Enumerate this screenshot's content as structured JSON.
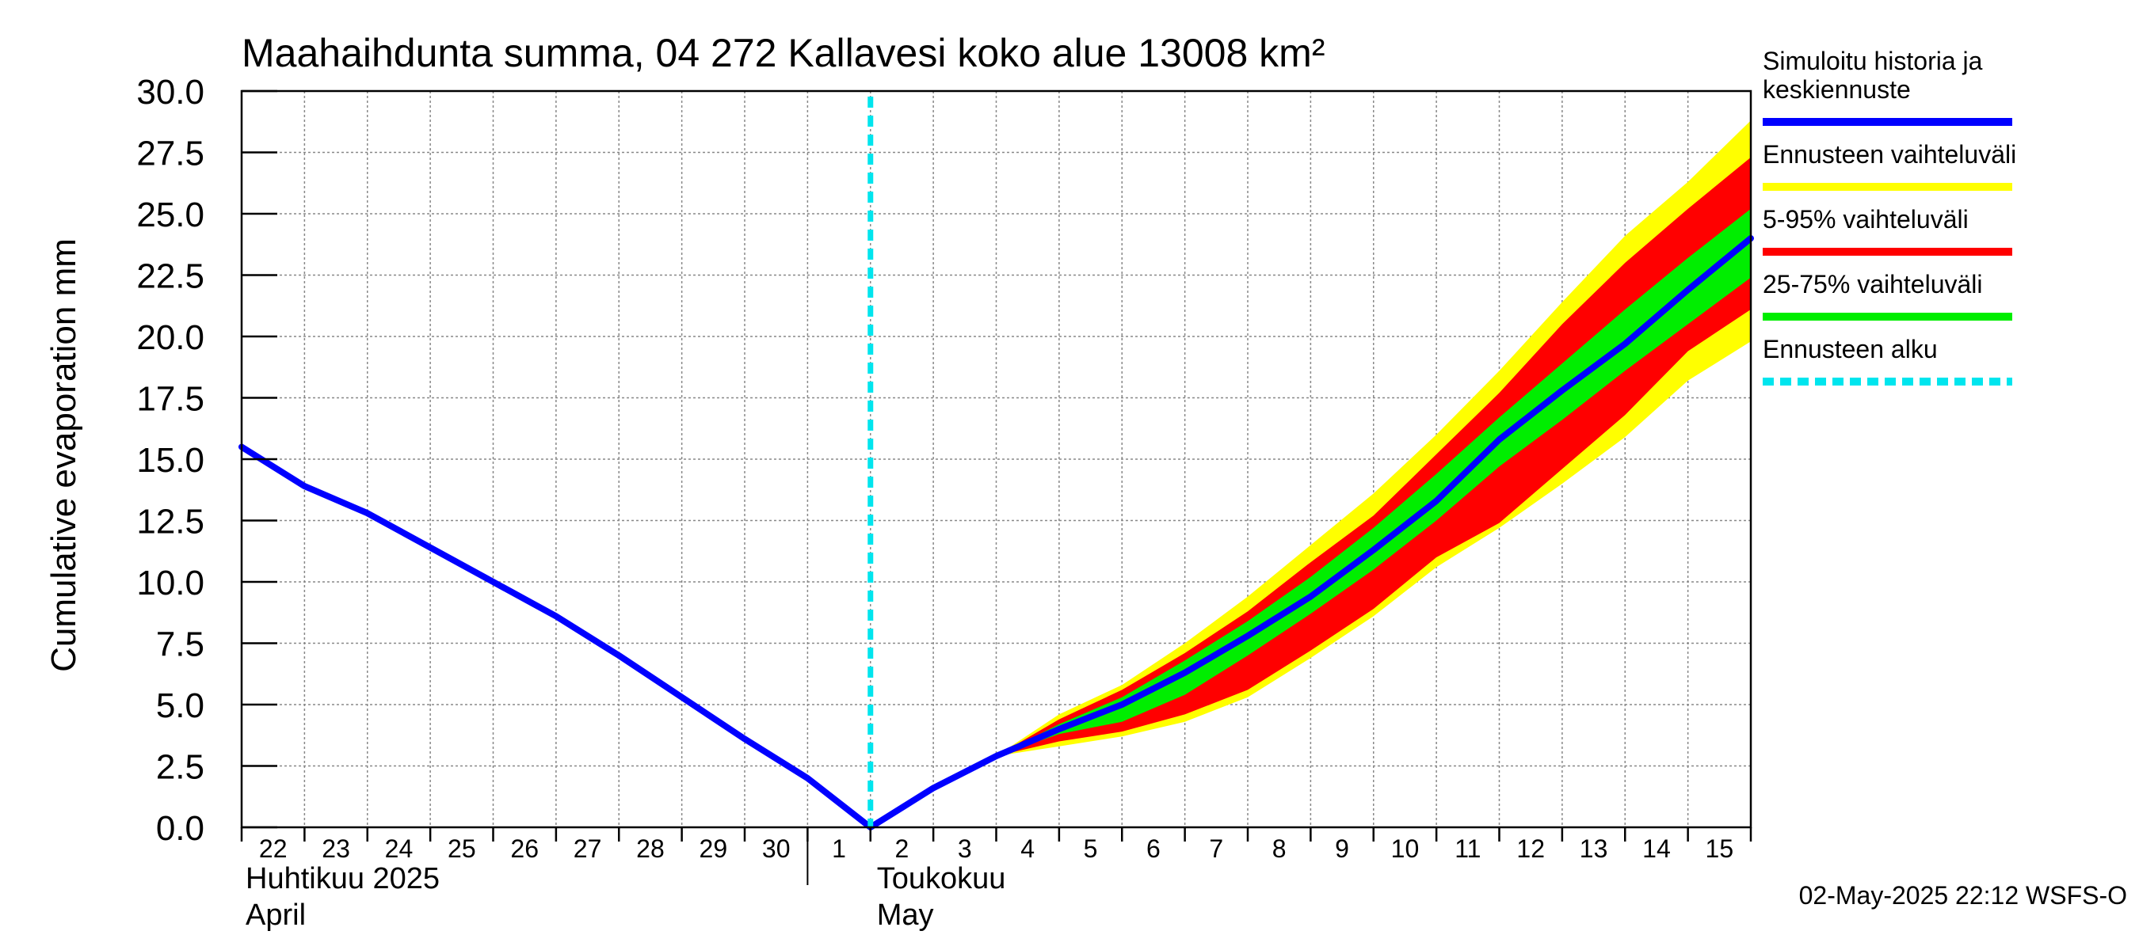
{
  "chart_data": {
    "type": "area",
    "title": "Maahaihdunta summa, 04 272 Kallavesi koko alue 13008 km²",
    "ylabel": "Cumulative evaporation   mm",
    "ylim": [
      0,
      30
    ],
    "yticks": [
      "0.0",
      "2.5",
      "5.0",
      "7.5",
      "10.0",
      "12.5",
      "15.0",
      "17.5",
      "20.0",
      "22.5",
      "25.0",
      "27.5",
      "30.0"
    ],
    "x_start": "2025-04-22",
    "x_end": "2025-05-16",
    "x_tick_labels": [
      "22",
      "23",
      "24",
      "25",
      "26",
      "27",
      "28",
      "29",
      "30",
      "1",
      "2",
      "3",
      "4",
      "5",
      "6",
      "7",
      "8",
      "9",
      "10",
      "11",
      "12",
      "13",
      "14",
      "15"
    ],
    "month_labels": [
      {
        "line1": "Huhtikuu  2025",
        "line2": "April"
      },
      {
        "line1": "Toukokuu",
        "line2": "May"
      }
    ],
    "forecast_start": "2025-05-02",
    "series": [
      {
        "name": "Simuloitu historia ja keskiennuste",
        "color": "#0000ff",
        "x": [
          "2025-04-22",
          "2025-04-23",
          "2025-04-24",
          "2025-04-25",
          "2025-04-26",
          "2025-04-27",
          "2025-04-28",
          "2025-04-29",
          "2025-04-30",
          "2025-05-01",
          "2025-05-02",
          "2025-05-03",
          "2025-05-04",
          "2025-05-05",
          "2025-05-06",
          "2025-05-07",
          "2025-05-08",
          "2025-05-09",
          "2025-05-10",
          "2025-05-11",
          "2025-05-12",
          "2025-05-13",
          "2025-05-14",
          "2025-05-15",
          "2025-05-16"
        ],
        "y": [
          15.5,
          13.9,
          12.8,
          11.4,
          10.0,
          8.6,
          7.0,
          5.3,
          3.6,
          2.0,
          0.0,
          1.6,
          2.9,
          4.0,
          5.0,
          6.3,
          7.8,
          9.4,
          11.3,
          13.3,
          15.8,
          17.8,
          19.7,
          21.9,
          24.0
        ]
      }
    ],
    "bands": [
      {
        "name": "Ennusteen vaihteluväli",
        "color": "#ffff00",
        "x": [
          "2025-05-04",
          "2025-05-05",
          "2025-05-06",
          "2025-05-07",
          "2025-05-08",
          "2025-05-09",
          "2025-05-10",
          "2025-05-11",
          "2025-05-12",
          "2025-05-13",
          "2025-05-14",
          "2025-05-15",
          "2025-05-16"
        ],
        "low": [
          2.9,
          3.3,
          3.7,
          4.3,
          5.3,
          6.9,
          8.6,
          10.6,
          12.2,
          14.0,
          15.9,
          18.2,
          19.8
        ],
        "high": [
          2.9,
          4.6,
          5.8,
          7.5,
          9.4,
          11.5,
          13.6,
          16.0,
          18.6,
          21.4,
          24.1,
          26.3,
          28.8
        ]
      },
      {
        "name": "5-95% vaihteluväli",
        "color": "#ff0000",
        "x": [
          "2025-05-04",
          "2025-05-05",
          "2025-05-06",
          "2025-05-07",
          "2025-05-08",
          "2025-05-09",
          "2025-05-10",
          "2025-05-11",
          "2025-05-12",
          "2025-05-13",
          "2025-05-14",
          "2025-05-15",
          "2025-05-16"
        ],
        "low": [
          2.9,
          3.5,
          3.9,
          4.6,
          5.6,
          7.2,
          8.9,
          11.0,
          12.4,
          14.6,
          16.8,
          19.4,
          21.1
        ],
        "high": [
          2.9,
          4.4,
          5.6,
          7.1,
          8.8,
          10.8,
          12.7,
          15.2,
          17.7,
          20.5,
          23.0,
          25.2,
          27.3
        ]
      },
      {
        "name": "25-75% vaihteluväli",
        "color": "#00ee00",
        "x": [
          "2025-05-04",
          "2025-05-05",
          "2025-05-06",
          "2025-05-07",
          "2025-05-08",
          "2025-05-09",
          "2025-05-10",
          "2025-05-11",
          "2025-05-12",
          "2025-05-13",
          "2025-05-14",
          "2025-05-15",
          "2025-05-16"
        ],
        "low": [
          2.9,
          3.8,
          4.3,
          5.4,
          7.0,
          8.7,
          10.5,
          12.5,
          14.7,
          16.6,
          18.6,
          20.5,
          22.4
        ],
        "high": [
          2.9,
          4.2,
          5.3,
          6.8,
          8.4,
          10.2,
          12.2,
          14.4,
          16.7,
          18.9,
          21.1,
          23.2,
          25.2
        ]
      }
    ],
    "legend": {
      "placement": "right",
      "items": [
        {
          "label_lines": [
            "Simuloitu historia ja",
            "keskiennuste"
          ],
          "color": "#0000ff",
          "style": "solid"
        },
        {
          "label_lines": [
            "Ennusteen vaihteluväli"
          ],
          "color": "#ffff00",
          "style": "solid"
        },
        {
          "label_lines": [
            "5-95% vaihteluväli"
          ],
          "color": "#ff0000",
          "style": "solid"
        },
        {
          "label_lines": [
            "25-75% vaihteluväli"
          ],
          "color": "#00ee00",
          "style": "solid"
        },
        {
          "label_lines": [
            "Ennusteen alku"
          ],
          "color": "#00e5ee",
          "style": "dashed"
        }
      ]
    },
    "grid": true,
    "timestamp": "02-May-2025 22:12 WSFS-O"
  }
}
